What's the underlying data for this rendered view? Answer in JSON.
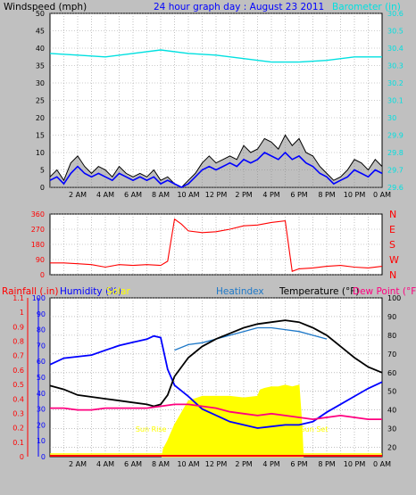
{
  "title": "24 hour graph day : August 23 2011",
  "colors": {
    "background": "#c0c0c0",
    "plot": "#ffffff",
    "grid": "#9a9a9a",
    "wind": "#000000",
    "wind_avg": "#0000ff",
    "gust_fill": "#808080",
    "barometer": "#00e0e0",
    "direction": "#ff0000",
    "humidity": "#0000ff",
    "solar": "#ffff00",
    "heatindex": "#1e78c8",
    "temperature": "#000000",
    "dewpoint": "#ff007f",
    "rain_axis": "#ff0000",
    "rain_line": "#ff0000"
  },
  "chart_data": [
    {
      "type": "line",
      "ylabel": "Windspeed (mph)",
      "y2label": "Barometer (in)",
      "ylim": [
        0,
        50
      ],
      "y2lim": [
        29.6,
        30.6
      ],
      "yticks": [
        "0",
        "5",
        "10",
        "15",
        "20",
        "25",
        "30",
        "35",
        "40",
        "45",
        "50"
      ],
      "y2ticks": [
        "29.6",
        "29.7",
        "29.8",
        "29.9",
        "30",
        "30.1",
        "30.2",
        "30.3",
        "30.4",
        "30.5",
        "30.6"
      ],
      "xlim": [
        0,
        24
      ],
      "xticks": [
        {
          "x": 2,
          "label": "2 AM"
        },
        {
          "x": 4,
          "label": "4 AM"
        },
        {
          "x": 6,
          "label": "6 AM"
        },
        {
          "x": 8,
          "label": "8 AM"
        },
        {
          "x": 10,
          "label": "10 AM"
        },
        {
          "x": 12,
          "label": "12 PM"
        },
        {
          "x": 14,
          "label": "2 PM"
        },
        {
          "x": 16,
          "label": "4 PM"
        },
        {
          "x": 18,
          "label": "6 PM"
        },
        {
          "x": 20,
          "label": "8 PM"
        },
        {
          "x": 22,
          "label": "10 PM"
        },
        {
          "x": 24,
          "label": "0 AM"
        }
      ],
      "series": [
        {
          "key": "gust",
          "x": [
            0,
            0.5,
            1,
            1.5,
            2,
            2.5,
            3,
            3.5,
            4,
            4.5,
            5,
            5.5,
            6,
            6.5,
            7,
            7.5,
            8,
            8.5,
            9,
            9.5,
            10,
            10.5,
            11,
            11.5,
            12,
            12.5,
            13,
            13.5,
            14,
            14.5,
            15,
            15.5,
            16,
            16.5,
            17,
            17.5,
            18,
            18.5,
            19,
            19.5,
            20,
            20.5,
            21,
            21.5,
            22,
            22.5,
            23,
            23.5,
            24
          ],
          "y": [
            3,
            5,
            2,
            7,
            9,
            6,
            4,
            6,
            5,
            3,
            6,
            4,
            3,
            4,
            3,
            5,
            2,
            3,
            1,
            0,
            2,
            4,
            7,
            9,
            7,
            8,
            9,
            8,
            12,
            10,
            11,
            14,
            13,
            11,
            15,
            12,
            14,
            10,
            9,
            6,
            4,
            2,
            3,
            5,
            8,
            7,
            5,
            8,
            6
          ]
        },
        {
          "key": "wind",
          "x": [
            0,
            0.5,
            1,
            1.5,
            2,
            2.5,
            3,
            3.5,
            4,
            4.5,
            5,
            5.5,
            6,
            6.5,
            7,
            7.5,
            8,
            8.5,
            9,
            9.5,
            10,
            10.5,
            11,
            11.5,
            12,
            12.5,
            13,
            13.5,
            14,
            14.5,
            15,
            15.5,
            16,
            16.5,
            17,
            17.5,
            18,
            18.5,
            19,
            19.5,
            20,
            20.5,
            21,
            21.5,
            22,
            22.5,
            23,
            23.5,
            24
          ],
          "y": [
            2,
            3,
            1,
            4,
            6,
            4,
            3,
            4,
            3,
            2,
            4,
            3,
            2,
            3,
            2,
            3,
            1,
            2,
            1,
            0,
            1,
            3,
            5,
            6,
            5,
            6,
            7,
            6,
            8,
            7,
            8,
            10,
            9,
            8,
            10,
            8,
            9,
            7,
            6,
            4,
            3,
            1,
            2,
            3,
            5,
            4,
            3,
            5,
            4
          ]
        },
        {
          "key": "barometer",
          "x": [
            0,
            2,
            4,
            6,
            8,
            10,
            12,
            14,
            16,
            18,
            20,
            22,
            24
          ],
          "y": [
            30.37,
            30.36,
            30.35,
            30.37,
            30.39,
            30.37,
            30.36,
            30.34,
            30.32,
            30.32,
            30.33,
            30.35,
            30.35
          ]
        }
      ]
    },
    {
      "type": "line",
      "y2labels": [
        "N",
        "W",
        "S",
        "E",
        "N"
      ],
      "yticks": [
        "0",
        "90",
        "180",
        "270",
        "360"
      ],
      "ylim": [
        0,
        360
      ],
      "xlim": [
        0,
        24
      ],
      "series": [
        {
          "key": "direction",
          "x": [
            0,
            1,
            2,
            3,
            4,
            5,
            6,
            7,
            8,
            8.5,
            9,
            9.5,
            10,
            11,
            12,
            13,
            14,
            15,
            16,
            17,
            17.5,
            18,
            19,
            20,
            21,
            22,
            23,
            24
          ],
          "y": [
            70,
            70,
            65,
            60,
            45,
            60,
            55,
            60,
            55,
            80,
            330,
            300,
            260,
            250,
            255,
            270,
            290,
            295,
            310,
            320,
            20,
            35,
            40,
            50,
            55,
            45,
            40,
            50
          ]
        }
      ]
    },
    {
      "type": "line",
      "legend": [
        "Rainfall (.in)",
        "Humidity (%)",
        "Solar",
        "Heatindex",
        "Temperature (°F)",
        "Dew Point (°F)"
      ],
      "ylabel": "Rainfall (.in)",
      "yticks_rain": [
        "0",
        "0.1",
        "0.2",
        "0.3",
        "0.4",
        "0.5",
        "0.6",
        "0.7",
        "0.8",
        "0.9",
        "1",
        "1.1"
      ],
      "yticks_hum": [
        "0",
        "10",
        "20",
        "30",
        "40",
        "50",
        "60",
        "70",
        "80",
        "90",
        "100"
      ],
      "yticks_temp": [
        "20",
        "30",
        "40",
        "50",
        "60",
        "70",
        "80",
        "90",
        "100"
      ],
      "annotations": [
        "Sun Rise",
        "Sun Set"
      ],
      "xlim": [
        0,
        24
      ],
      "series": [
        {
          "key": "solar",
          "x": [
            8.1,
            8.2,
            8.5,
            9,
            10,
            11,
            12,
            13,
            14,
            15,
            15.2,
            15.5,
            16,
            16.5,
            17,
            17.5,
            18,
            18.2,
            18.3
          ],
          "y": [
            0,
            5,
            10,
            20,
            35,
            38,
            38,
            38,
            37,
            38,
            42,
            43,
            44,
            44,
            45,
            44,
            45,
            20,
            0
          ]
        },
        {
          "key": "humidity",
          "x": [
            0,
            1,
            2,
            3,
            4,
            5,
            6,
            7,
            7.5,
            8,
            8.5,
            9,
            10,
            11,
            12,
            13,
            14,
            15,
            16,
            17,
            18,
            19,
            20,
            21,
            22,
            23,
            24
          ],
          "y": [
            58,
            62,
            63,
            64,
            67,
            70,
            72,
            74,
            76,
            75,
            55,
            45,
            38,
            30,
            26,
            22,
            20,
            18,
            19,
            20,
            20,
            22,
            28,
            33,
            38,
            43,
            47
          ]
        },
        {
          "key": "heatindex",
          "x": [
            9,
            10,
            11,
            12,
            13,
            14,
            15,
            16,
            17,
            18,
            19,
            20
          ],
          "y": [
            72,
            75,
            76,
            78,
            80,
            82,
            84,
            84,
            83,
            82,
            80,
            78
          ]
        },
        {
          "key": "temperature",
          "x": [
            0,
            1,
            2,
            3,
            4,
            5,
            6,
            7,
            7.5,
            8,
            8.5,
            9,
            10,
            11,
            12,
            13,
            14,
            15,
            16,
            17,
            18,
            19,
            20,
            21,
            22,
            23,
            24
          ],
          "y": [
            53,
            51,
            48,
            47,
            46,
            45,
            44,
            43,
            42,
            43,
            48,
            58,
            68,
            74,
            78,
            81,
            84,
            86,
            87,
            88,
            87,
            84,
            80,
            74,
            68,
            63,
            60
          ]
        },
        {
          "key": "dewpoint",
          "x": [
            0,
            1,
            2,
            3,
            4,
            5,
            6,
            7,
            8,
            9,
            10,
            11,
            12,
            13,
            14,
            15,
            16,
            17,
            18,
            19,
            20,
            21,
            22,
            23,
            24
          ],
          "y": [
            41,
            41,
            40,
            40,
            41,
            41,
            41,
            41,
            42,
            43,
            43,
            42,
            41,
            39,
            38,
            37,
            38,
            37,
            36,
            35,
            36,
            37,
            36,
            35,
            35
          ]
        },
        {
          "key": "rain",
          "x": [
            0,
            24
          ],
          "y": [
            0,
            0
          ]
        }
      ]
    }
  ]
}
